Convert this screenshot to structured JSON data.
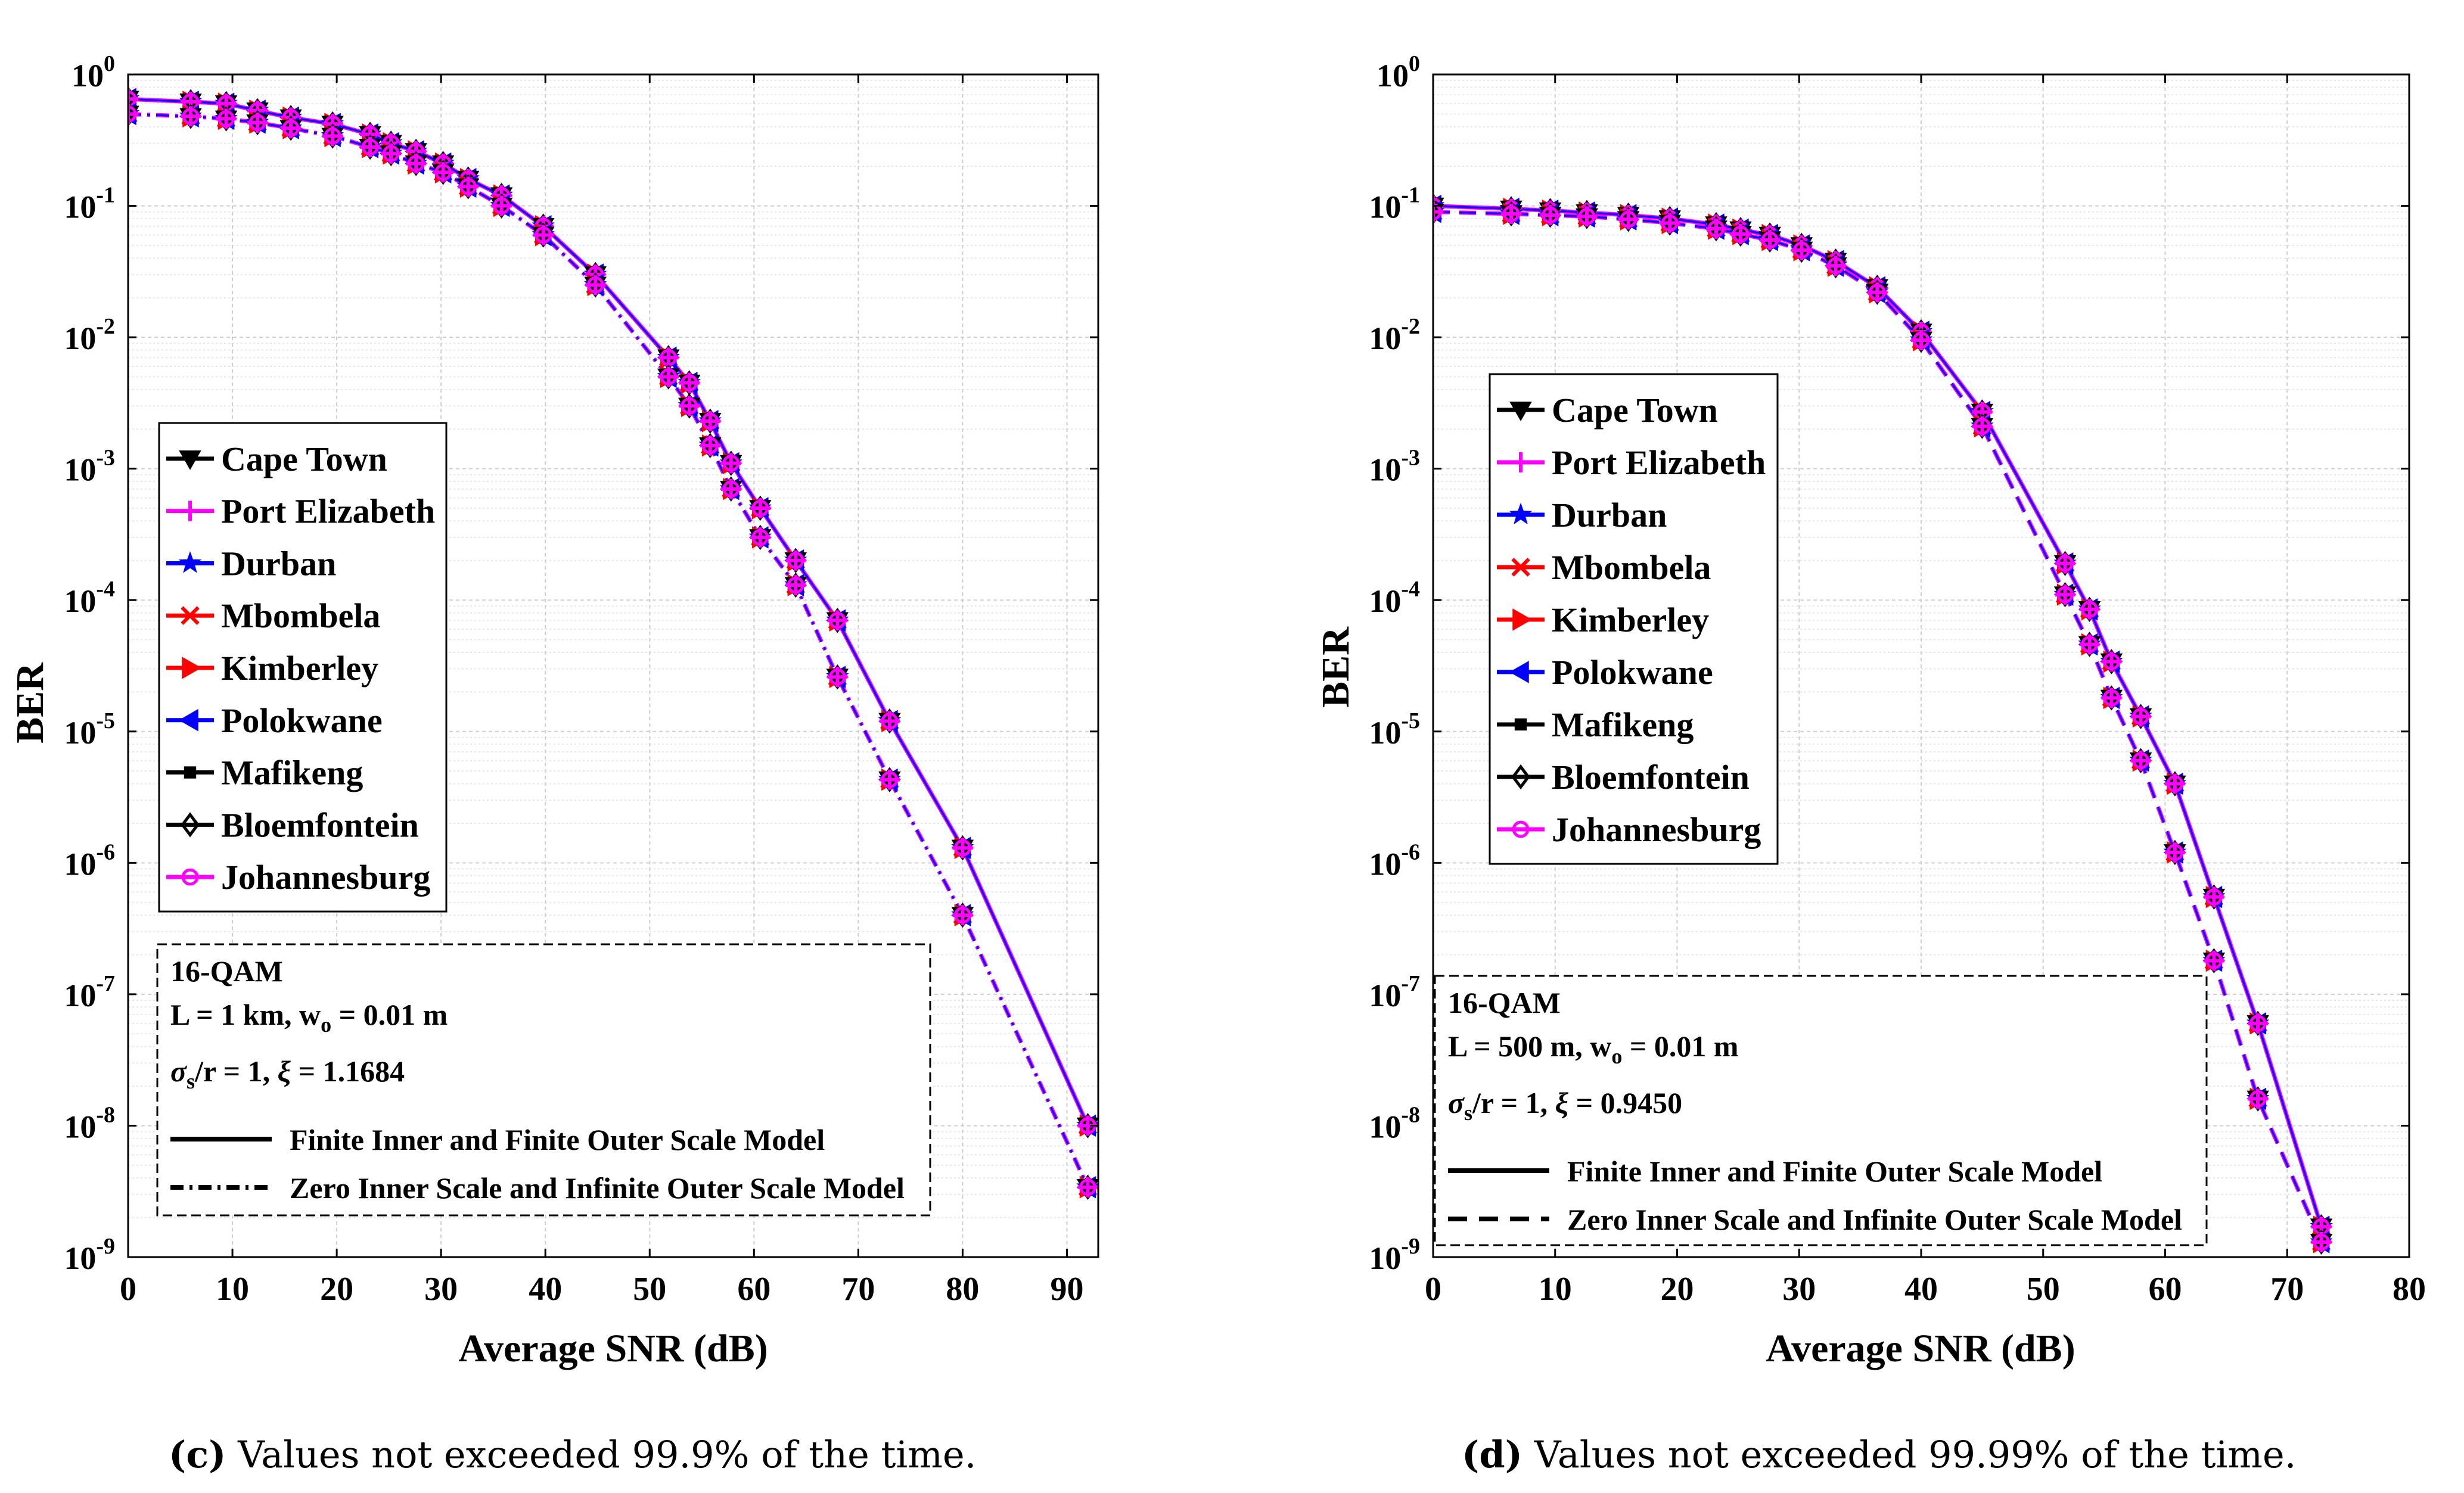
{
  "chart_data": [
    {
      "type": "line",
      "id": "c",
      "xlabel": "Average SNR (dB)",
      "ylabel": "BER",
      "yscale": "log",
      "xlim": [
        0,
        93
      ],
      "ylim": [
        1e-09,
        1
      ],
      "xticks": [
        0,
        10,
        20,
        30,
        40,
        50,
        60,
        70,
        80,
        90
      ],
      "yticks": [
        {
          "base": "10",
          "exp": "0",
          "value": 1
        },
        {
          "base": "10",
          "exp": "-1",
          "value": 0.1
        },
        {
          "base": "10",
          "exp": "-2",
          "value": 0.01
        },
        {
          "base": "10",
          "exp": "-3",
          "value": 0.001
        },
        {
          "base": "10",
          "exp": "-4",
          "value": 0.0001
        },
        {
          "base": "10",
          "exp": "-5",
          "value": 1e-05
        },
        {
          "base": "10",
          "exp": "-6",
          "value": 1e-06
        },
        {
          "base": "10",
          "exp": "-7",
          "value": 1e-07
        },
        {
          "base": "10",
          "exp": "-8",
          "value": 1e-08
        },
        {
          "base": "10",
          "exp": "-9",
          "value": 1e-09
        }
      ],
      "grid": true,
      "legend_position": "middle-left",
      "legend": [
        {
          "name": "Cape Town",
          "color": "#000000",
          "marker": "triangle-down"
        },
        {
          "name": "Port Elizabeth",
          "color": "#ff00ff",
          "marker": "plus"
        },
        {
          "name": "Durban",
          "color": "#0000ff",
          "marker": "star"
        },
        {
          "name": "Mbombela",
          "color": "#ff0000",
          "marker": "x"
        },
        {
          "name": "Kimberley",
          "color": "#ff0000",
          "marker": "triangle-right"
        },
        {
          "name": "Polokwane",
          "color": "#0000ff",
          "marker": "triangle-left"
        },
        {
          "name": "Mafikeng",
          "color": "#000000",
          "marker": "square"
        },
        {
          "name": "Bloemfontein",
          "color": "#000000",
          "marker": "diamond"
        },
        {
          "name": "Johannesburg",
          "color": "#ff00ff",
          "marker": "circle"
        }
      ],
      "annotation": {
        "line1": "16-QAM",
        "line2_prefix": "L = 1 km, w",
        "line2_sub": "o",
        "line2_suffix": " = 0.01 m",
        "line3_sigma": "σ",
        "line3_sub": "s",
        "line3_mid": "/r = 1,  ",
        "line3_xi": "ξ",
        "line3_end": " = 1.1684",
        "model1": "Finite Inner and Finite Outer Scale Model",
        "model2": "Zero Inner Scale and Infinite Outer Scale Model",
        "model2_style": "dash-dot"
      },
      "x": [
        0,
        6,
        9.4,
        12.4,
        15.6,
        19.6,
        23.2,
        25.2,
        27.6,
        30.2,
        32.6,
        35.8,
        39.8,
        44.8,
        51.8,
        53.8,
        55.8,
        57.8,
        60.6,
        64,
        68,
        73,
        80,
        92
      ],
      "series": [
        {
          "name": "Finite Inner and Finite Outer Scale Model",
          "style": "solid",
          "values": [
            0.65,
            0.62,
            0.6,
            0.53,
            0.47,
            0.42,
            0.35,
            0.3,
            0.26,
            0.21,
            0.16,
            0.12,
            0.07,
            0.03,
            0.007,
            0.0045,
            0.0023,
            0.0011,
            0.0005,
            0.0002,
            7e-05,
            1.2e-05,
            1.3e-06,
            1e-08
          ]
        },
        {
          "name": "Zero Inner Scale and Infinite Outer Scale Model",
          "style": "dash-dot",
          "values": [
            0.5,
            0.48,
            0.46,
            0.43,
            0.39,
            0.34,
            0.28,
            0.25,
            0.21,
            0.18,
            0.14,
            0.1,
            0.06,
            0.025,
            0.005,
            0.003,
            0.0015,
            0.0007,
            0.0003,
            0.00013,
            2.6e-05,
            4.3e-06,
            4e-07,
            3.4e-09
          ]
        }
      ]
    },
    {
      "type": "line",
      "id": "d",
      "xlabel": "Average SNR (dB)",
      "ylabel": "BER",
      "yscale": "log",
      "xlim": [
        0,
        80
      ],
      "ylim": [
        1e-09,
        1
      ],
      "xticks": [
        0,
        10,
        20,
        30,
        40,
        50,
        60,
        70,
        80
      ],
      "yticks": [
        {
          "base": "10",
          "exp": "0",
          "value": 1
        },
        {
          "base": "10",
          "exp": "-1",
          "value": 0.1
        },
        {
          "base": "10",
          "exp": "-2",
          "value": 0.01
        },
        {
          "base": "10",
          "exp": "-3",
          "value": 0.001
        },
        {
          "base": "10",
          "exp": "-4",
          "value": 0.0001
        },
        {
          "base": "10",
          "exp": "-5",
          "value": 1e-05
        },
        {
          "base": "10",
          "exp": "-6",
          "value": 1e-06
        },
        {
          "base": "10",
          "exp": "-7",
          "value": 1e-07
        },
        {
          "base": "10",
          "exp": "-8",
          "value": 1e-08
        },
        {
          "base": "10",
          "exp": "-9",
          "value": 1e-09
        }
      ],
      "grid": true,
      "legend_position": "upper-left",
      "legend": [
        {
          "name": "Cape Town",
          "color": "#000000",
          "marker": "triangle-down"
        },
        {
          "name": "Port Elizabeth",
          "color": "#ff00ff",
          "marker": "plus"
        },
        {
          "name": "Durban",
          "color": "#0000ff",
          "marker": "star"
        },
        {
          "name": "Mbombela",
          "color": "#ff0000",
          "marker": "x"
        },
        {
          "name": "Kimberley",
          "color": "#ff0000",
          "marker": "triangle-right"
        },
        {
          "name": "Polokwane",
          "color": "#0000ff",
          "marker": "triangle-left"
        },
        {
          "name": "Mafikeng",
          "color": "#000000",
          "marker": "square"
        },
        {
          "name": "Bloemfontein",
          "color": "#000000",
          "marker": "diamond"
        },
        {
          "name": "Johannesburg",
          "color": "#ff00ff",
          "marker": "circle"
        }
      ],
      "annotation": {
        "line1": "16-QAM",
        "line2_prefix": "L = 500 m, w",
        "line2_sub": "o",
        "line2_suffix": " = 0.01 m",
        "line3_sigma": "σ",
        "line3_sub": "s",
        "line3_mid": "/r = 1, ",
        "line3_xi": "ξ",
        "line3_end": " = 0.9450",
        "model1": "Finite Inner and Finite Outer Scale Model",
        "model2": "Zero Inner Scale and Infinite Outer Scale Model",
        "model2_style": "dashed"
      },
      "x": [
        0,
        6.4,
        9.6,
        12.6,
        16,
        19.4,
        23.2,
        25.2,
        27.6,
        30.2,
        33,
        36.4,
        40,
        45,
        51.8,
        53.8,
        55.6,
        58,
        60.8,
        64,
        67.6,
        72.8
      ],
      "series": [
        {
          "name": "Finite Inner and Finite Outer Scale Model",
          "style": "solid",
          "values": [
            0.1,
            0.095,
            0.092,
            0.089,
            0.085,
            0.08,
            0.072,
            0.066,
            0.06,
            0.05,
            0.038,
            0.024,
            0.011,
            0.0027,
            0.00019,
            8.5e-05,
            3.4e-05,
            1.3e-05,
            4e-06,
            5.5e-07,
            6e-08,
            1.7e-09
          ]
        },
        {
          "name": "Zero Inner Scale and Infinite Outer Scale Model",
          "style": "dashed",
          "values": [
            0.09,
            0.087,
            0.085,
            0.083,
            0.079,
            0.074,
            0.067,
            0.061,
            0.055,
            0.046,
            0.035,
            0.022,
            0.0095,
            0.0021,
            0.00011,
            4.6e-05,
            1.8e-05,
            6e-06,
            1.2e-06,
            1.8e-07,
            1.6e-08,
            1.3e-09
          ]
        }
      ]
    }
  ],
  "captions": [
    {
      "letter": "(c)",
      "text": " Values not exceeded 99.9% of the time."
    },
    {
      "letter": "(d)",
      "text": " Values not exceeded 99.99% of the time."
    }
  ]
}
